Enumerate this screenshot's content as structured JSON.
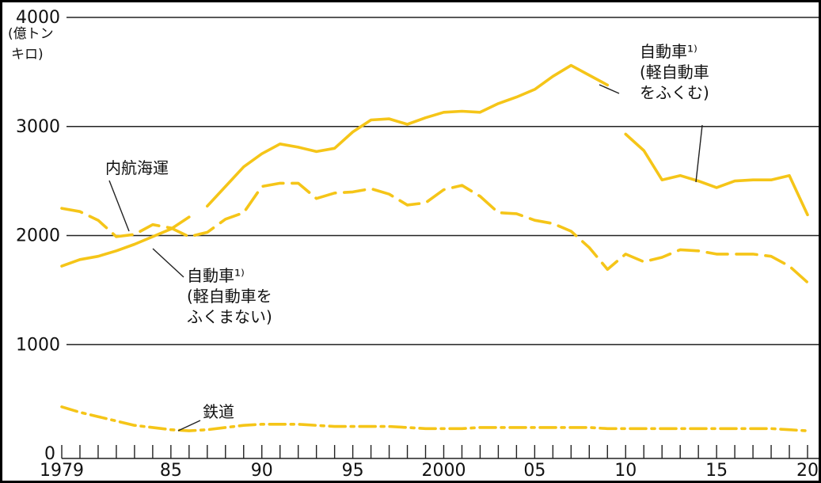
{
  "chart_data": {
    "type": "line",
    "x": [
      1979,
      1980,
      1981,
      1982,
      1983,
      1984,
      1985,
      1986,
      1987,
      1988,
      1989,
      1990,
      1991,
      1992,
      1993,
      1994,
      1995,
      1996,
      1997,
      1998,
      1999,
      2000,
      2001,
      2002,
      2003,
      2004,
      2005,
      2006,
      2007,
      2008,
      2009,
      2010,
      2011,
      2012,
      2013,
      2014,
      2015,
      2016,
      2017,
      2018,
      2019,
      2020
    ],
    "xticks": [
      {
        "value": 1979,
        "label": "1979"
      },
      {
        "value": 1985,
        "label": "85"
      },
      {
        "value": 1990,
        "label": "90"
      },
      {
        "value": 1995,
        "label": "95"
      },
      {
        "value": 2000,
        "label": "2000"
      },
      {
        "value": 2005,
        "label": "05"
      },
      {
        "value": 2010,
        "label": "10"
      },
      {
        "value": 2015,
        "label": "15"
      },
      {
        "value": 2020,
        "label": "20"
      }
    ],
    "yticks": [
      {
        "value": 0,
        "label": "0"
      },
      {
        "value": 1000,
        "label": "1000"
      },
      {
        "value": 2000,
        "label": "2000"
      },
      {
        "value": 3000,
        "label": "3000"
      },
      {
        "value": 4000,
        "label": "4000"
      }
    ],
    "ylim": [
      0,
      4000
    ],
    "xlim": [
      1979,
      2020
    ],
    "ylabel": [
      "(億トン",
      "キロ)"
    ],
    "grid": "horizontal",
    "series": [
      {
        "name": "自動車(軽自動車をふくまない)",
        "style": "solid",
        "color": "#f5c518",
        "values": [
          1720,
          1780,
          1810,
          1860,
          1920,
          1990,
          2060,
          2170,
          null,
          null,
          null,
          null,
          null,
          null,
          null,
          null,
          null,
          null,
          null,
          null,
          null,
          null,
          null,
          null,
          null,
          null,
          null,
          null,
          null,
          null,
          null,
          null,
          null,
          null,
          null,
          null,
          null,
          null,
          null,
          null,
          null,
          null
        ]
      },
      {
        "name": "自動車(軽自動車をふくむ)",
        "style": "solid",
        "color": "#f5c518",
        "values": [
          null,
          null,
          null,
          null,
          null,
          null,
          null,
          null,
          2270,
          2450,
          2630,
          2750,
          2840,
          2810,
          2770,
          2800,
          2950,
          3060,
          3070,
          3020,
          3080,
          3130,
          3140,
          3130,
          3210,
          3270,
          3340,
          3460,
          3560,
          3470,
          3380,
          null,
          null,
          null,
          null,
          null,
          null,
          null,
          null,
          null,
          null,
          null
        ]
      },
      {
        "name": "自動車(軽自動車をふくむ) 2010-",
        "style": "solid",
        "color": "#f5c518",
        "values": [
          null,
          null,
          null,
          null,
          null,
          null,
          null,
          null,
          null,
          null,
          null,
          null,
          null,
          null,
          null,
          null,
          null,
          null,
          null,
          null,
          null,
          null,
          null,
          null,
          null,
          null,
          null,
          null,
          null,
          null,
          null,
          2930,
          2780,
          2510,
          2550,
          2500,
          2440,
          2500,
          2510,
          2510,
          2550,
          2190
        ]
      },
      {
        "name": "内航海運",
        "style": "dashed",
        "color": "#f5c518",
        "values": [
          2250,
          2220,
          2140,
          1990,
          2010,
          2100,
          2070,
          1990,
          2030,
          2150,
          2210,
          2450,
          2480,
          2480,
          2340,
          2390,
          2400,
          2430,
          2380,
          2280,
          2300,
          2420,
          2460,
          2360,
          2210,
          2200,
          2140,
          2110,
          2040,
          1890,
          1690,
          1830,
          1760,
          1800,
          1870,
          1860,
          1830,
          1830,
          1830,
          1810,
          1720,
          1570
        ]
      },
      {
        "name": "鉄道",
        "style": "dashdot",
        "color": "#f5c518",
        "values": [
          430,
          380,
          340,
          300,
          260,
          240,
          220,
          210,
          220,
          240,
          260,
          270,
          270,
          270,
          260,
          250,
          250,
          250,
          250,
          240,
          230,
          230,
          230,
          240,
          240,
          240,
          240,
          240,
          240,
          240,
          230,
          230,
          230,
          230,
          230,
          230,
          230,
          230,
          230,
          230,
          220,
          210
        ]
      }
    ],
    "annotations": [
      {
        "id": "naiko",
        "lines": [
          "内航海運"
        ]
      },
      {
        "id": "car-lower",
        "lines": [
          "自動車¹⁾",
          "(軽自動車を",
          "ふくまない)"
        ]
      },
      {
        "id": "car-upper",
        "lines": [
          "自動車¹⁾",
          "(軽自動車",
          "をふくむ)"
        ]
      },
      {
        "id": "rail",
        "lines": [
          "鉄道"
        ]
      }
    ]
  }
}
